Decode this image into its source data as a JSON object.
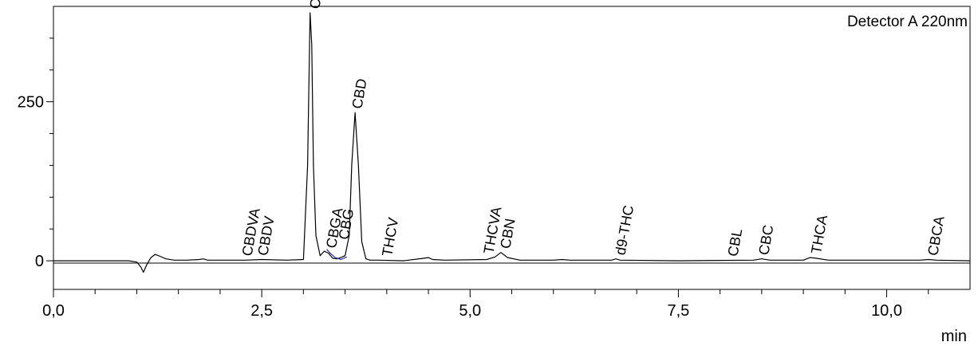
{
  "chart_data": {
    "type": "line",
    "detector_label": "Detector A 220nm",
    "xlabel": "min",
    "ylabel": "",
    "xlim": [
      0,
      11.0
    ],
    "ylim": [
      -45,
      400
    ],
    "x_ticks": [
      {
        "value": 0,
        "label": "0,0"
      },
      {
        "value": 2.5,
        "label": "2,5"
      },
      {
        "value": 5.0,
        "label": "5,0"
      },
      {
        "value": 7.5,
        "label": "7,5"
      },
      {
        "value": 10.0,
        "label": "10,0"
      }
    ],
    "y_ticks": [
      {
        "value": 0,
        "label": "0"
      },
      {
        "value": 250,
        "label": "250"
      }
    ],
    "series": [
      {
        "color": "#000000",
        "x": [
          0,
          0.9,
          1.0,
          1.05,
          1.08,
          1.12,
          1.17,
          1.22,
          1.28,
          1.35,
          1.45,
          1.6,
          1.75,
          1.8,
          1.85,
          2.0,
          2.3,
          2.5,
          2.8,
          3.0,
          3.05,
          3.08,
          3.1,
          3.12,
          3.15,
          3.2,
          3.25,
          3.3,
          3.35,
          3.4,
          3.45,
          3.5,
          3.55,
          3.58,
          3.62,
          3.66,
          3.7,
          3.75,
          3.8,
          3.9,
          4.2,
          4.45,
          4.5,
          4.55,
          4.7,
          5.2,
          5.3,
          5.37,
          5.45,
          5.6,
          6.0,
          6.1,
          6.2,
          6.7,
          6.75,
          6.8,
          7.5,
          8.4,
          8.5,
          8.6,
          9.0,
          9.08,
          9.15,
          9.3,
          10.4,
          10.5,
          10.6,
          11.0
        ],
        "y": [
          0,
          0,
          -2,
          -10,
          -18,
          -6,
          5,
          10,
          7,
          3,
          1,
          1,
          2,
          3,
          1,
          1,
          1,
          2,
          1,
          2,
          150,
          390,
          340,
          150,
          40,
          8,
          15,
          12,
          4,
          3,
          5,
          8,
          40,
          150,
          233,
          150,
          30,
          3,
          1,
          1,
          0,
          4,
          5,
          2,
          1,
          2,
          6,
          13,
          5,
          1,
          1,
          2,
          1,
          1,
          3,
          1,
          0,
          1,
          3,
          1,
          1,
          5,
          4,
          1,
          1,
          2,
          1,
          0
        ]
      },
      {
        "color": "#2a2ab0",
        "x": [
          3.28,
          3.32,
          3.38,
          3.45,
          3.52
        ],
        "y": [
          18,
          12,
          5,
          2,
          6
        ]
      }
    ],
    "peaks": [
      {
        "name": "CBDVA",
        "x": 2.32
      },
      {
        "name": "CBDV",
        "x": 2.51
      },
      {
        "name": "CBDA",
        "x": 3.13
      },
      {
        "name": "CBGA",
        "x": 3.33
      },
      {
        "name": "CBG",
        "x": 3.48
      },
      {
        "name": "CBD",
        "x": 3.64
      },
      {
        "name": "THCV",
        "x": 4.0
      },
      {
        "name": "THCVA",
        "x": 5.22
      },
      {
        "name": "CBN",
        "x": 5.42
      },
      {
        "name": "d9-THC",
        "x": 6.8
      },
      {
        "name": "CBL",
        "x": 8.15
      },
      {
        "name": "CBC",
        "x": 8.52
      },
      {
        "name": "THCA",
        "x": 9.15
      },
      {
        "name": "CBCA",
        "x": 10.55
      }
    ]
  }
}
